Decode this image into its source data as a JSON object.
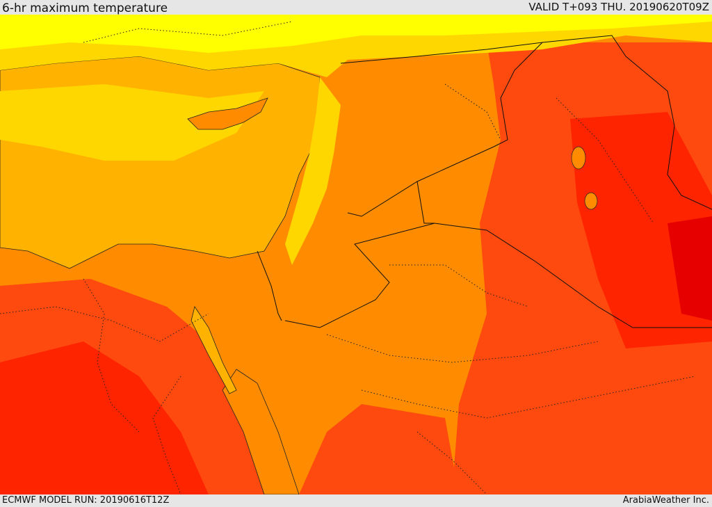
{
  "header": {
    "title": "6-hr maximum temperature",
    "valid": "VALID T+093 THU. 20190620T09Z"
  },
  "footer": {
    "model_run": "ECMWF MODEL RUN: 20190616T12Z",
    "credit": "ArabiaWeather Inc."
  },
  "palette": {
    "yellow": "#ffff00",
    "gold": "#ffd700",
    "amber": "#ffb300",
    "orange": "#ff8c00",
    "dark_orange": "#ff6a00",
    "red_orange": "#ff4a0f",
    "red": "#ff2400",
    "deep_red": "#e60000"
  }
}
